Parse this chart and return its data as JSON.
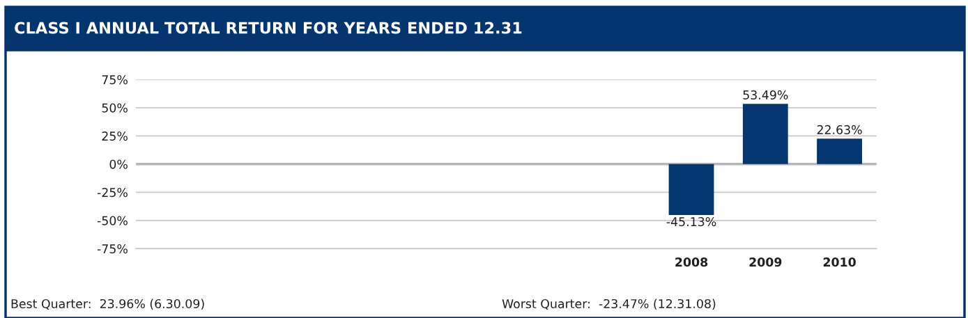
{
  "chart_data": {
    "type": "bar",
    "title": "CLASS I ANNUAL TOTAL RETURN FOR YEARS ENDED 12.31",
    "categories": [
      null,
      null,
      null,
      null,
      null,
      null,
      null,
      "2008",
      "2009",
      "2010"
    ],
    "values": [
      null,
      null,
      null,
      null,
      null,
      null,
      null,
      -45.13,
      53.49,
      22.63
    ],
    "value_labels": [
      null,
      null,
      null,
      null,
      null,
      null,
      null,
      "-45.13%",
      "53.49%",
      "22.63%"
    ],
    "color": "#05366f",
    "ylim": [
      -75,
      75
    ],
    "yticks": [
      {
        "value": -75,
        "label": "-75%"
      },
      {
        "value": -50,
        "label": "-50%"
      },
      {
        "value": -25,
        "label": "-25%"
      },
      {
        "value": 0,
        "label": "0%"
      },
      {
        "value": 25,
        "label": "25%"
      },
      {
        "value": 50,
        "label": "50%"
      },
      {
        "value": 75,
        "label": "75%"
      }
    ],
    "grid": "y",
    "ref_lines": [
      {
        "axis": "y",
        "value": 0,
        "color": "#b4b6b9"
      }
    ],
    "annotations": [
      "Best Quarter:  23.96% (6.30.09)",
      "Worst Quarter:  -23.47% (12.31.08)"
    ]
  }
}
